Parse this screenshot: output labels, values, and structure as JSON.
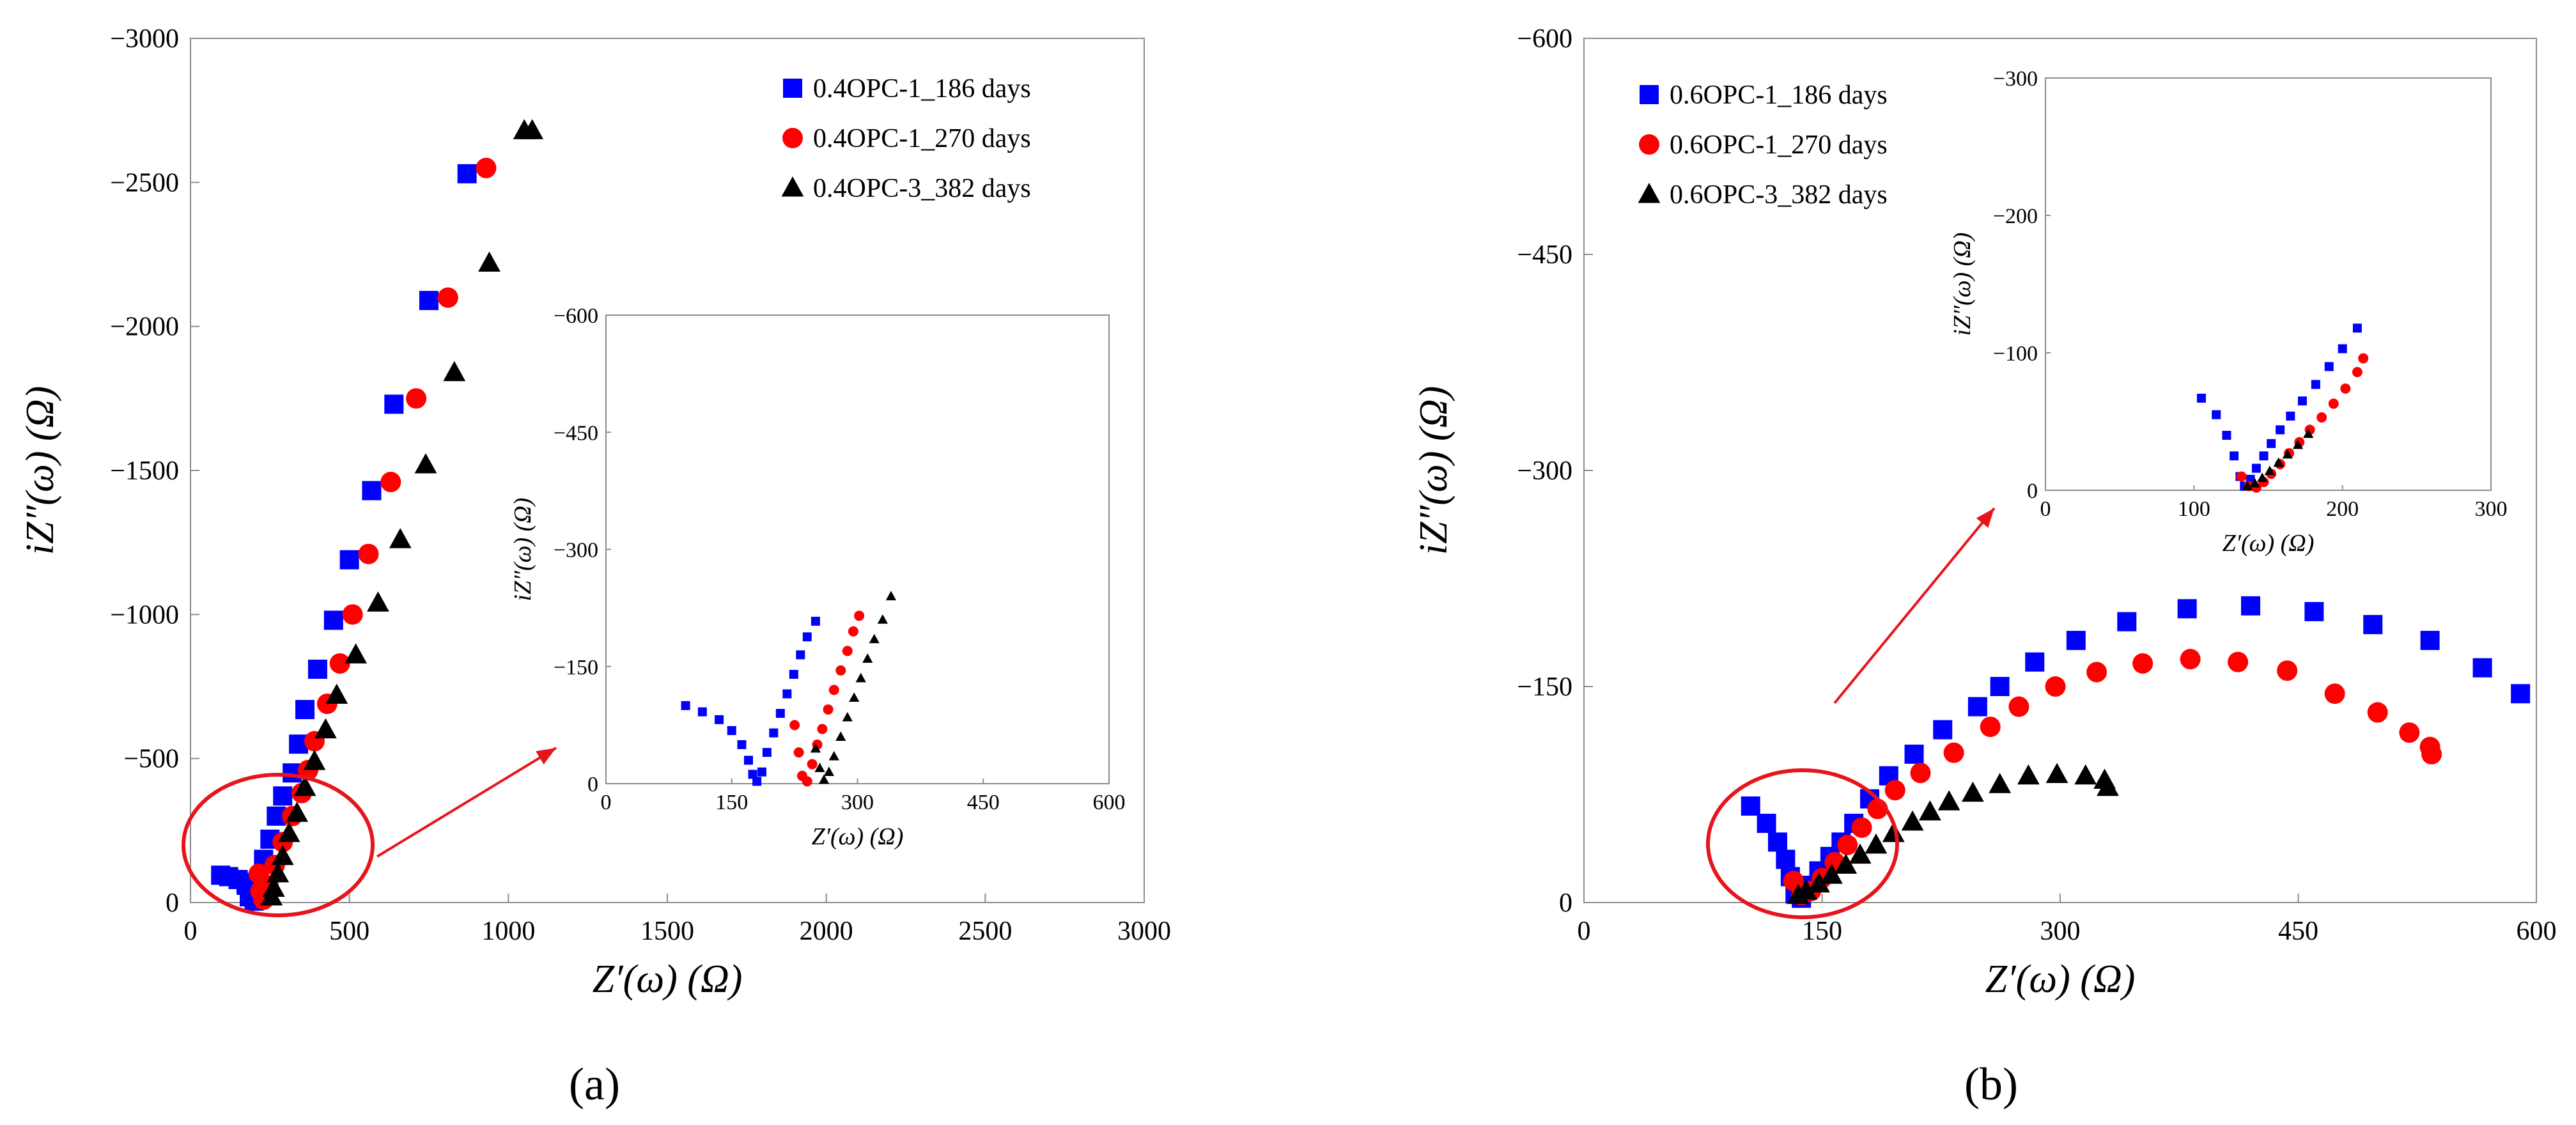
{
  "colors": {
    "blue": "#0000ff",
    "red": "#ff0000",
    "black": "#000000",
    "annotation": "#e8141b"
  },
  "panel_labels": {
    "a": "(a)",
    "b": "(b)"
  },
  "chart_data": [
    {
      "type": "scatter",
      "id": "a-main",
      "xlabel": "Z′(ω) (Ω)",
      "ylabel": "iZ″(ω) (Ω)",
      "xlim": [
        0,
        3000
      ],
      "ylim": [
        0,
        -3000
      ],
      "xticks": [
        "0",
        "500",
        "1000",
        "1500",
        "2000",
        "2500",
        "3000"
      ],
      "yticks": [
        "0",
        "−500",
        "−1000",
        "−1500",
        "−2000",
        "−2500",
        "−3000"
      ],
      "legend_position": "top-right",
      "series": [
        {
          "name": "0.4OPC-1_186 days",
          "marker": "square",
          "color": "#0000ff",
          "points": [
            [
              95,
              -95
            ],
            [
              120,
              -90
            ],
            [
              150,
              -80
            ],
            [
              175,
              -60
            ],
            [
              185,
              -20
            ],
            [
              200,
              -5
            ],
            [
              210,
              -70
            ],
            [
              230,
              -150
            ],
            [
              250,
              -220
            ],
            [
              270,
              -300
            ],
            [
              290,
              -370
            ],
            [
              320,
              -450
            ],
            [
              340,
              -550
            ],
            [
              360,
              -670
            ],
            [
              400,
              -810
            ],
            [
              450,
              -980
            ],
            [
              500,
              -1190
            ],
            [
              570,
              -1430
            ],
            [
              640,
              -1730
            ],
            [
              750,
              -2090
            ],
            [
              870,
              -2530
            ]
          ]
        },
        {
          "name": "0.4OPC-1_270 days",
          "marker": "circle",
          "color": "#ff0000",
          "points": [
            [
              215,
              -100
            ],
            [
              220,
              -40
            ],
            [
              230,
              -10
            ],
            [
              245,
              -60
            ],
            [
              265,
              -130
            ],
            [
              290,
              -210
            ],
            [
              320,
              -300
            ],
            [
              350,
              -380
            ],
            [
              370,
              -460
            ],
            [
              390,
              -560
            ],
            [
              430,
              -690
            ],
            [
              470,
              -830
            ],
            [
              510,
              -1000
            ],
            [
              560,
              -1210
            ],
            [
              630,
              -1460
            ],
            [
              710,
              -1750
            ],
            [
              810,
              -2100
            ],
            [
              930,
              -2550
            ]
          ]
        },
        {
          "name": "0.4OPC-3_382 days",
          "marker": "triangle",
          "color": "#000000",
          "points": [
            [
              255,
              -20
            ],
            [
              262,
              -50
            ],
            [
              275,
              -100
            ],
            [
              290,
              -160
            ],
            [
              310,
              -240
            ],
            [
              335,
              -310
            ],
            [
              360,
              -400
            ],
            [
              390,
              -490
            ],
            [
              425,
              -600
            ],
            [
              460,
              -720
            ],
            [
              520,
              -860
            ],
            [
              590,
              -1040
            ],
            [
              660,
              -1260
            ],
            [
              740,
              -1520
            ],
            [
              830,
              -1840
            ],
            [
              940,
              -2220
            ],
            [
              1050,
              -2680
            ],
            [
              1075,
              -2680
            ]
          ]
        }
      ]
    },
    {
      "type": "scatter",
      "id": "a-inset",
      "xlabel": "Z′(ω) (Ω)",
      "ylabel": "iZ″(ω) (Ω)",
      "xlim": [
        0,
        600
      ],
      "ylim": [
        0,
        -600
      ],
      "xticks": [
        "0",
        "150",
        "300",
        "450",
        "600"
      ],
      "yticks": [
        "0",
        "−150",
        "−300",
        "−450",
        "−600"
      ],
      "series": [
        {
          "name": "0.4OPC-1_186 days",
          "marker": "square",
          "color": "#0000ff",
          "points": [
            [
              95,
              -100
            ],
            [
              115,
              -92
            ],
            [
              135,
              -82
            ],
            [
              150,
              -68
            ],
            [
              162,
              -50
            ],
            [
              170,
              -30
            ],
            [
              175,
              -12
            ],
            [
              180,
              -3
            ],
            [
              186,
              -15
            ],
            [
              192,
              -40
            ],
            [
              200,
              -65
            ],
            [
              208,
              -90
            ],
            [
              216,
              -115
            ],
            [
              224,
              -140
            ],
            [
              232,
              -165
            ],
            [
              240,
              -188
            ],
            [
              250,
              -208
            ]
          ]
        },
        {
          "name": "0.4OPC-1_270 days",
          "marker": "circle",
          "color": "#ff0000",
          "points": [
            [
              225,
              -75
            ],
            [
              230,
              -40
            ],
            [
              234,
              -10
            ],
            [
              240,
              -3
            ],
            [
              246,
              -25
            ],
            [
              252,
              -50
            ],
            [
              258,
              -70
            ],
            [
              265,
              -95
            ],
            [
              272,
              -120
            ],
            [
              280,
              -145
            ],
            [
              288,
              -170
            ],
            [
              295,
              -195
            ],
            [
              302,
              -215
            ]
          ]
        },
        {
          "name": "0.4OPC-3_382 days",
          "marker": "triangle",
          "color": "#000000",
          "points": [
            [
              250,
              -45
            ],
            [
              255,
              -20
            ],
            [
              260,
              -5
            ],
            [
              266,
              -15
            ],
            [
              272,
              -35
            ],
            [
              280,
              -60
            ],
            [
              288,
              -85
            ],
            [
              296,
              -110
            ],
            [
              304,
              -135
            ],
            [
              312,
              -160
            ],
            [
              320,
              -185
            ],
            [
              330,
              -210
            ],
            [
              340,
              -240
            ]
          ]
        }
      ]
    },
    {
      "type": "scatter",
      "id": "b-main",
      "xlabel": "Z′(ω) (Ω)",
      "ylabel": "iZ″(ω) (Ω)",
      "xlim": [
        0,
        600
      ],
      "ylim": [
        0,
        -600
      ],
      "xticks": [
        "0",
        "150",
        "300",
        "450",
        "600"
      ],
      "yticks": [
        "0",
        "−150",
        "−300",
        "−450",
        "−600"
      ],
      "legend_position": "top-left",
      "series": [
        {
          "name": "0.6OPC-1_186 days",
          "marker": "square",
          "color": "#0000ff",
          "points": [
            [
              105,
              -67
            ],
            [
              115,
              -55
            ],
            [
              122,
              -42
            ],
            [
              127,
              -30
            ],
            [
              130,
              -18
            ],
            [
              133,
              -6
            ],
            [
              137,
              -3
            ],
            [
              142,
              -12
            ],
            [
              148,
              -22
            ],
            [
              155,
              -32
            ],
            [
              162,
              -42
            ],
            [
              170,
              -55
            ],
            [
              180,
              -72
            ],
            [
              192,
              -88
            ],
            [
              208,
              -103
            ],
            [
              226,
              -120
            ],
            [
              248,
              -136
            ],
            [
              262,
              -150
            ],
            [
              284,
              -167
            ],
            [
              310,
              -182
            ],
            [
              342,
              -195
            ],
            [
              380,
              -204
            ],
            [
              420,
              -206
            ],
            [
              460,
              -202
            ],
            [
              497,
              -193
            ],
            [
              533,
              -182
            ],
            [
              566,
              -163
            ],
            [
              590,
              -145
            ]
          ]
        },
        {
          "name": "0.6OPC-1_270 days",
          "marker": "circle",
          "color": "#ff0000",
          "points": [
            [
              132,
              -15
            ],
            [
              137,
              -5
            ],
            [
              143,
              -8
            ],
            [
              150,
              -17
            ],
            [
              158,
              -28
            ],
            [
              166,
              -40
            ],
            [
              175,
              -52
            ],
            [
              185,
              -65
            ],
            [
              196,
              -78
            ],
            [
              212,
              -90
            ],
            [
              233,
              -104
            ],
            [
              256,
              -122
            ],
            [
              274,
              -136
            ],
            [
              297,
              -150
            ],
            [
              323,
              -160
            ],
            [
              352,
              -166
            ],
            [
              382,
              -169
            ],
            [
              412,
              -167
            ],
            [
              443,
              -161
            ],
            [
              473,
              -145
            ],
            [
              500,
              -132
            ],
            [
              520,
              -118
            ],
            [
              533,
              -108
            ],
            [
              534,
              -103
            ]
          ]
        },
        {
          "name": "0.6OPC-3_382 days",
          "marker": "triangle",
          "color": "#000000",
          "points": [
            [
              135,
              -5
            ],
            [
              140,
              -8
            ],
            [
              148,
              -13
            ],
            [
              156,
              -19
            ],
            [
              165,
              -26
            ],
            [
              174,
              -33
            ],
            [
              184,
              -40
            ],
            [
              195,
              -48
            ],
            [
              207,
              -56
            ],
            [
              218,
              -63
            ],
            [
              230,
              -70
            ],
            [
              245,
              -76
            ],
            [
              262,
              -82
            ],
            [
              280,
              -88
            ],
            [
              298,
              -89
            ],
            [
              316,
              -88
            ],
            [
              328,
              -85
            ],
            [
              330,
              -80
            ]
          ]
        }
      ]
    },
    {
      "type": "scatter",
      "id": "b-inset",
      "xlabel": "Z′(ω) (Ω)",
      "ylabel": "iZ″(ω) (Ω)",
      "xlim": [
        0,
        300
      ],
      "ylim": [
        0,
        -300
      ],
      "xticks": [
        "0",
        "100",
        "200",
        "300"
      ],
      "yticks": [
        "0",
        "−100",
        "−200",
        "−300"
      ],
      "series": [
        {
          "name": "0.6OPC-1_186 days",
          "marker": "square",
          "color": "#0000ff",
          "points": [
            [
              105,
              -67
            ],
            [
              115,
              -55
            ],
            [
              122,
              -40
            ],
            [
              127,
              -25
            ],
            [
              131,
              -10
            ],
            [
              134,
              -3
            ],
            [
              138,
              -8
            ],
            [
              142,
              -16
            ],
            [
              147,
              -25
            ],
            [
              152,
              -34
            ],
            [
              158,
              -44
            ],
            [
              165,
              -54
            ],
            [
              173,
              -65
            ],
            [
              182,
              -77
            ],
            [
              191,
              -90
            ],
            [
              200,
              -103
            ],
            [
              210,
              -118
            ]
          ]
        },
        {
          "name": "0.6OPC-1_270 days",
          "marker": "circle",
          "color": "#ff0000",
          "points": [
            [
              132,
              -10
            ],
            [
              137,
              -3
            ],
            [
              142,
              -2
            ],
            [
              147,
              -6
            ],
            [
              152,
              -12
            ],
            [
              158,
              -19
            ],
            [
              164,
              -27
            ],
            [
              171,
              -35
            ],
            [
              178,
              -44
            ],
            [
              186,
              -53
            ],
            [
              194,
              -63
            ],
            [
              202,
              -74
            ],
            [
              210,
              -86
            ],
            [
              214,
              -96
            ]
          ]
        },
        {
          "name": "0.6OPC-3_382 days",
          "marker": "triangle",
          "color": "#000000",
          "points": [
            [
              136,
              -3
            ],
            [
              141,
              -5
            ],
            [
              146,
              -9
            ],
            [
              151,
              -14
            ],
            [
              157,
              -20
            ],
            [
              163,
              -26
            ],
            [
              170,
              -33
            ],
            [
              177,
              -41
            ]
          ]
        }
      ]
    }
  ]
}
